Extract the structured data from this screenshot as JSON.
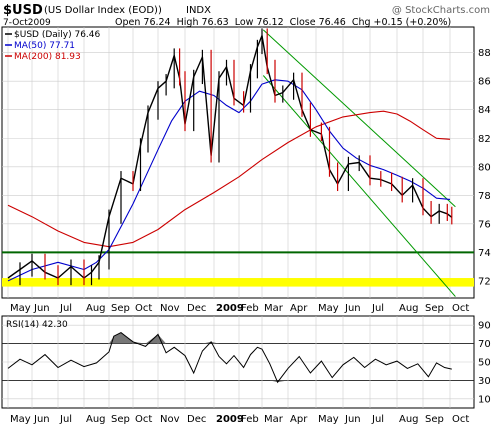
{
  "header": {
    "symbol": "$USD",
    "name": "(US Dollar Index (EOD))",
    "exchange": "INDX",
    "watermark": "@ StockCharts.com",
    "date": "7-Oct2009",
    "ohlc": "Open 76.24  High 76.63  Low 76.12  Close 76.46  Chg +0.15 (+0.20%)"
  },
  "colors": {
    "price_up": "#000000",
    "price_down": "#cc0000",
    "ma50": "#0000cc",
    "ma200": "#cc0000",
    "support": "#006600",
    "band": "#ffff00",
    "trend": "#009900",
    "grid": "#cccccc"
  },
  "chart_data": [
    {
      "type": "line",
      "panel": "price",
      "legend": [
        {
          "label": "$USD (Daily) 76.46",
          "color": "#000000"
        },
        {
          "label": "MA(50) 77.71",
          "color": "#0000cc"
        },
        {
          "label": "MA(200) 81.93",
          "color": "#cc0000"
        }
      ],
      "x_months": [
        "May",
        "Jun",
        "Jul",
        "Aug",
        "Sep",
        "Oct",
        "Nov",
        "Dec",
        "2009",
        "Feb",
        "Mar",
        "Apr",
        "May",
        "Jun",
        "Jul",
        "Aug",
        "Sep",
        "Oct"
      ],
      "x_range": [
        0,
        17.3
      ],
      "ylim": [
        70.8,
        89.8
      ],
      "y_ticks": [
        72,
        74,
        76,
        78,
        80,
        82,
        84,
        86,
        88
      ],
      "grid": true,
      "series": [
        {
          "name": "$USD (Daily)",
          "x": [
            0,
            0.5,
            1,
            1.5,
            2,
            2.5,
            3,
            3.3,
            3.6,
            4,
            4.5,
            5,
            5.3,
            5.6,
            6,
            6.3,
            6.6,
            6.8,
            7,
            7.3,
            7.6,
            7.9,
            8.2,
            8.5,
            8.8,
            9.2,
            9.5,
            9.8,
            10,
            10.2,
            10.5,
            10.8,
            11.2,
            11.5,
            11.8,
            12.2,
            12.5,
            12.8,
            13.2,
            13.6,
            14,
            14.4,
            14.8,
            15.2,
            15.6,
            16,
            16.3,
            16.6,
            16.9,
            17.1
          ],
          "values": [
            72.2,
            72.8,
            73.4,
            72.6,
            72.2,
            73.0,
            72.2,
            72.6,
            73.3,
            76.5,
            79.2,
            78.8,
            81.5,
            83.8,
            85.5,
            86.0,
            87.8,
            86.2,
            83.0,
            86.3,
            87.7,
            80.8,
            86.2,
            87.0,
            84.8,
            84.3,
            86.7,
            88.4,
            89.2,
            87.0,
            85.0,
            85.2,
            86.1,
            84.0,
            82.6,
            82.3,
            79.8,
            78.8,
            80.2,
            80.3,
            79.2,
            79.1,
            78.8,
            78.0,
            78.7,
            77.1,
            76.5,
            76.9,
            76.7,
            76.46
          ]
        },
        {
          "name": "MA(50)",
          "x": [
            0,
            1,
            2,
            3,
            3.5,
            4,
            4.5,
            5,
            5.5,
            6,
            6.5,
            7,
            7.5,
            8,
            8.5,
            9,
            9.5,
            10,
            10.5,
            11,
            11.5,
            12,
            12.5,
            13,
            13.5,
            14,
            14.5,
            15,
            15.5,
            16,
            16.5,
            17
          ],
          "values": [
            72.0,
            72.8,
            73.3,
            72.8,
            73.3,
            74.2,
            75.8,
            77.4,
            79.3,
            81.2,
            83.2,
            84.6,
            85.3,
            85.0,
            84.3,
            83.8,
            84.6,
            85.8,
            86.1,
            86.0,
            85.4,
            84.0,
            82.5,
            81.3,
            80.6,
            80.1,
            79.8,
            79.4,
            79.0,
            78.5,
            77.8,
            77.71
          ]
        },
        {
          "name": "MA(200)",
          "x": [
            0,
            1,
            2,
            3,
            4,
            5,
            6,
            7,
            8,
            9,
            10,
            11,
            12,
            13,
            14,
            14.5,
            15,
            15.5,
            16,
            16.5,
            17
          ],
          "values": [
            77.3,
            76.5,
            75.5,
            74.7,
            74.4,
            74.7,
            75.6,
            77.0,
            78.2,
            79.3,
            80.5,
            81.7,
            82.8,
            83.5,
            83.8,
            83.9,
            83.7,
            83.2,
            82.6,
            82.0,
            81.93
          ]
        }
      ],
      "annotations": [
        {
          "kind": "horizontal",
          "y": 74.0,
          "color": "#006600"
        },
        {
          "kind": "band",
          "y_range": [
            71.6,
            72.2
          ],
          "color": "#ffff00"
        },
        {
          "kind": "trendline",
          "from": [
            10.05,
            89.6
          ],
          "to": [
            17.3,
            77.2
          ],
          "color": "#009900"
        },
        {
          "kind": "trendline",
          "from": [
            10.05,
            86.4
          ],
          "to": [
            17.3,
            70.9
          ],
          "color": "#009900"
        }
      ]
    },
    {
      "type": "line",
      "panel": "rsi",
      "legend": [
        {
          "label": "RSI(14) 42.30",
          "color": "#000000"
        }
      ],
      "ylim": [
        0,
        100
      ],
      "y_ticks": [
        10,
        30,
        50,
        70,
        90
      ],
      "levels": [
        30,
        70
      ],
      "series": [
        {
          "name": "RSI(14)",
          "x": [
            0,
            0.5,
            1,
            1.5,
            2,
            2.5,
            3,
            3.5,
            4,
            4.2,
            4.5,
            5,
            5.5,
            6,
            6.3,
            6.6,
            7,
            7.3,
            7.6,
            7.9,
            8.2,
            8.5,
            8.8,
            9.2,
            9.5,
            9.8,
            10,
            10.3,
            10.6,
            11,
            11.4,
            11.8,
            12.2,
            12.6,
            13,
            13.4,
            13.8,
            14.2,
            14.6,
            15,
            15.4,
            15.8,
            16.2,
            16.5,
            16.8,
            17.1
          ],
          "values": [
            43,
            53,
            47,
            58,
            44,
            52,
            45,
            49,
            61,
            78,
            82,
            72,
            67,
            80,
            60,
            66,
            57,
            38,
            62,
            72,
            56,
            48,
            57,
            44,
            58,
            66,
            64,
            48,
            28,
            43,
            56,
            38,
            51,
            33,
            47,
            55,
            44,
            53,
            47,
            51,
            43,
            48,
            34,
            49,
            44,
            42.3
          ]
        }
      ]
    }
  ]
}
